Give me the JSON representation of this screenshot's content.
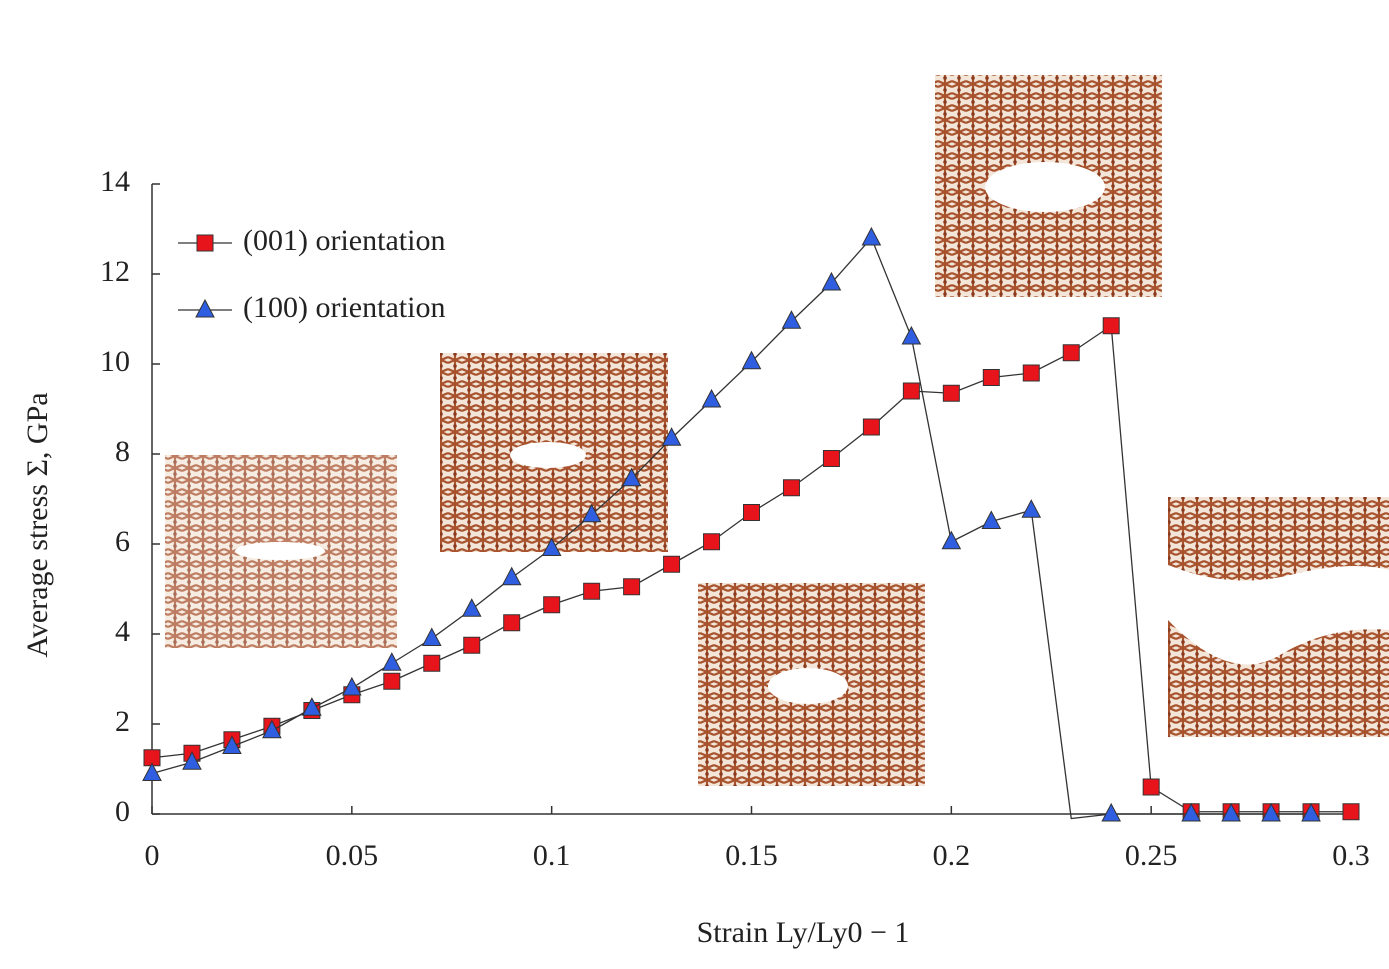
{
  "chart_data": {
    "type": "line",
    "xlabel": "Strain Ly/Ly0 − 1",
    "ylabel": "Average stress Σ, GPa",
    "xlim": [
      0,
      0.3
    ],
    "ylim": [
      0,
      14
    ],
    "xticks": [
      0,
      0.05,
      0.1,
      0.15,
      0.2,
      0.25,
      0.3
    ],
    "yticks": [
      0,
      2,
      4,
      6,
      8,
      10,
      12,
      14
    ],
    "legend": "upper left",
    "series": [
      {
        "name": "(001) orientation",
        "color": "#e8141c",
        "marker": "square",
        "x": [
          0,
          0.01,
          0.02,
          0.03,
          0.04,
          0.05,
          0.06,
          0.07,
          0.08,
          0.09,
          0.1,
          0.11,
          0.12,
          0.13,
          0.14,
          0.15,
          0.16,
          0.17,
          0.18,
          0.19,
          0.2,
          0.21,
          0.22,
          0.23,
          0.24,
          0.25,
          0.26,
          0.27,
          0.28,
          0.29,
          0.3
        ],
        "values": [
          1.25,
          1.35,
          1.65,
          1.95,
          2.3,
          2.65,
          2.95,
          3.35,
          3.75,
          4.25,
          4.65,
          4.95,
          5.05,
          5.55,
          6.05,
          6.7,
          7.25,
          7.9,
          8.6,
          9.4,
          9.35,
          9.7,
          9.8,
          10.25,
          10.85,
          0.6,
          0.05,
          0.05,
          0.05,
          0.05,
          0.05
        ]
      },
      {
        "name": "(100) orientation",
        "color": "#2f5fe0",
        "marker": "triangle",
        "x": [
          0,
          0.01,
          0.02,
          0.03,
          0.04,
          0.05,
          0.06,
          0.07,
          0.08,
          0.09,
          0.1,
          0.11,
          0.12,
          0.13,
          0.14,
          0.15,
          0.16,
          0.17,
          0.18,
          0.19,
          0.2,
          0.21,
          0.22,
          0.23,
          0.24,
          0.26,
          0.27,
          0.28,
          0.29
        ],
        "values": [
          0.9,
          1.15,
          1.5,
          1.85,
          2.35,
          2.8,
          3.35,
          3.9,
          4.55,
          5.25,
          5.9,
          6.65,
          7.45,
          8.35,
          9.2,
          10.05,
          10.95,
          11.8,
          12.8,
          10.6,
          6.05,
          6.5,
          6.75,
          -0.1,
          0,
          0,
          0,
          0,
          0
        ]
      }
    ]
  }
}
